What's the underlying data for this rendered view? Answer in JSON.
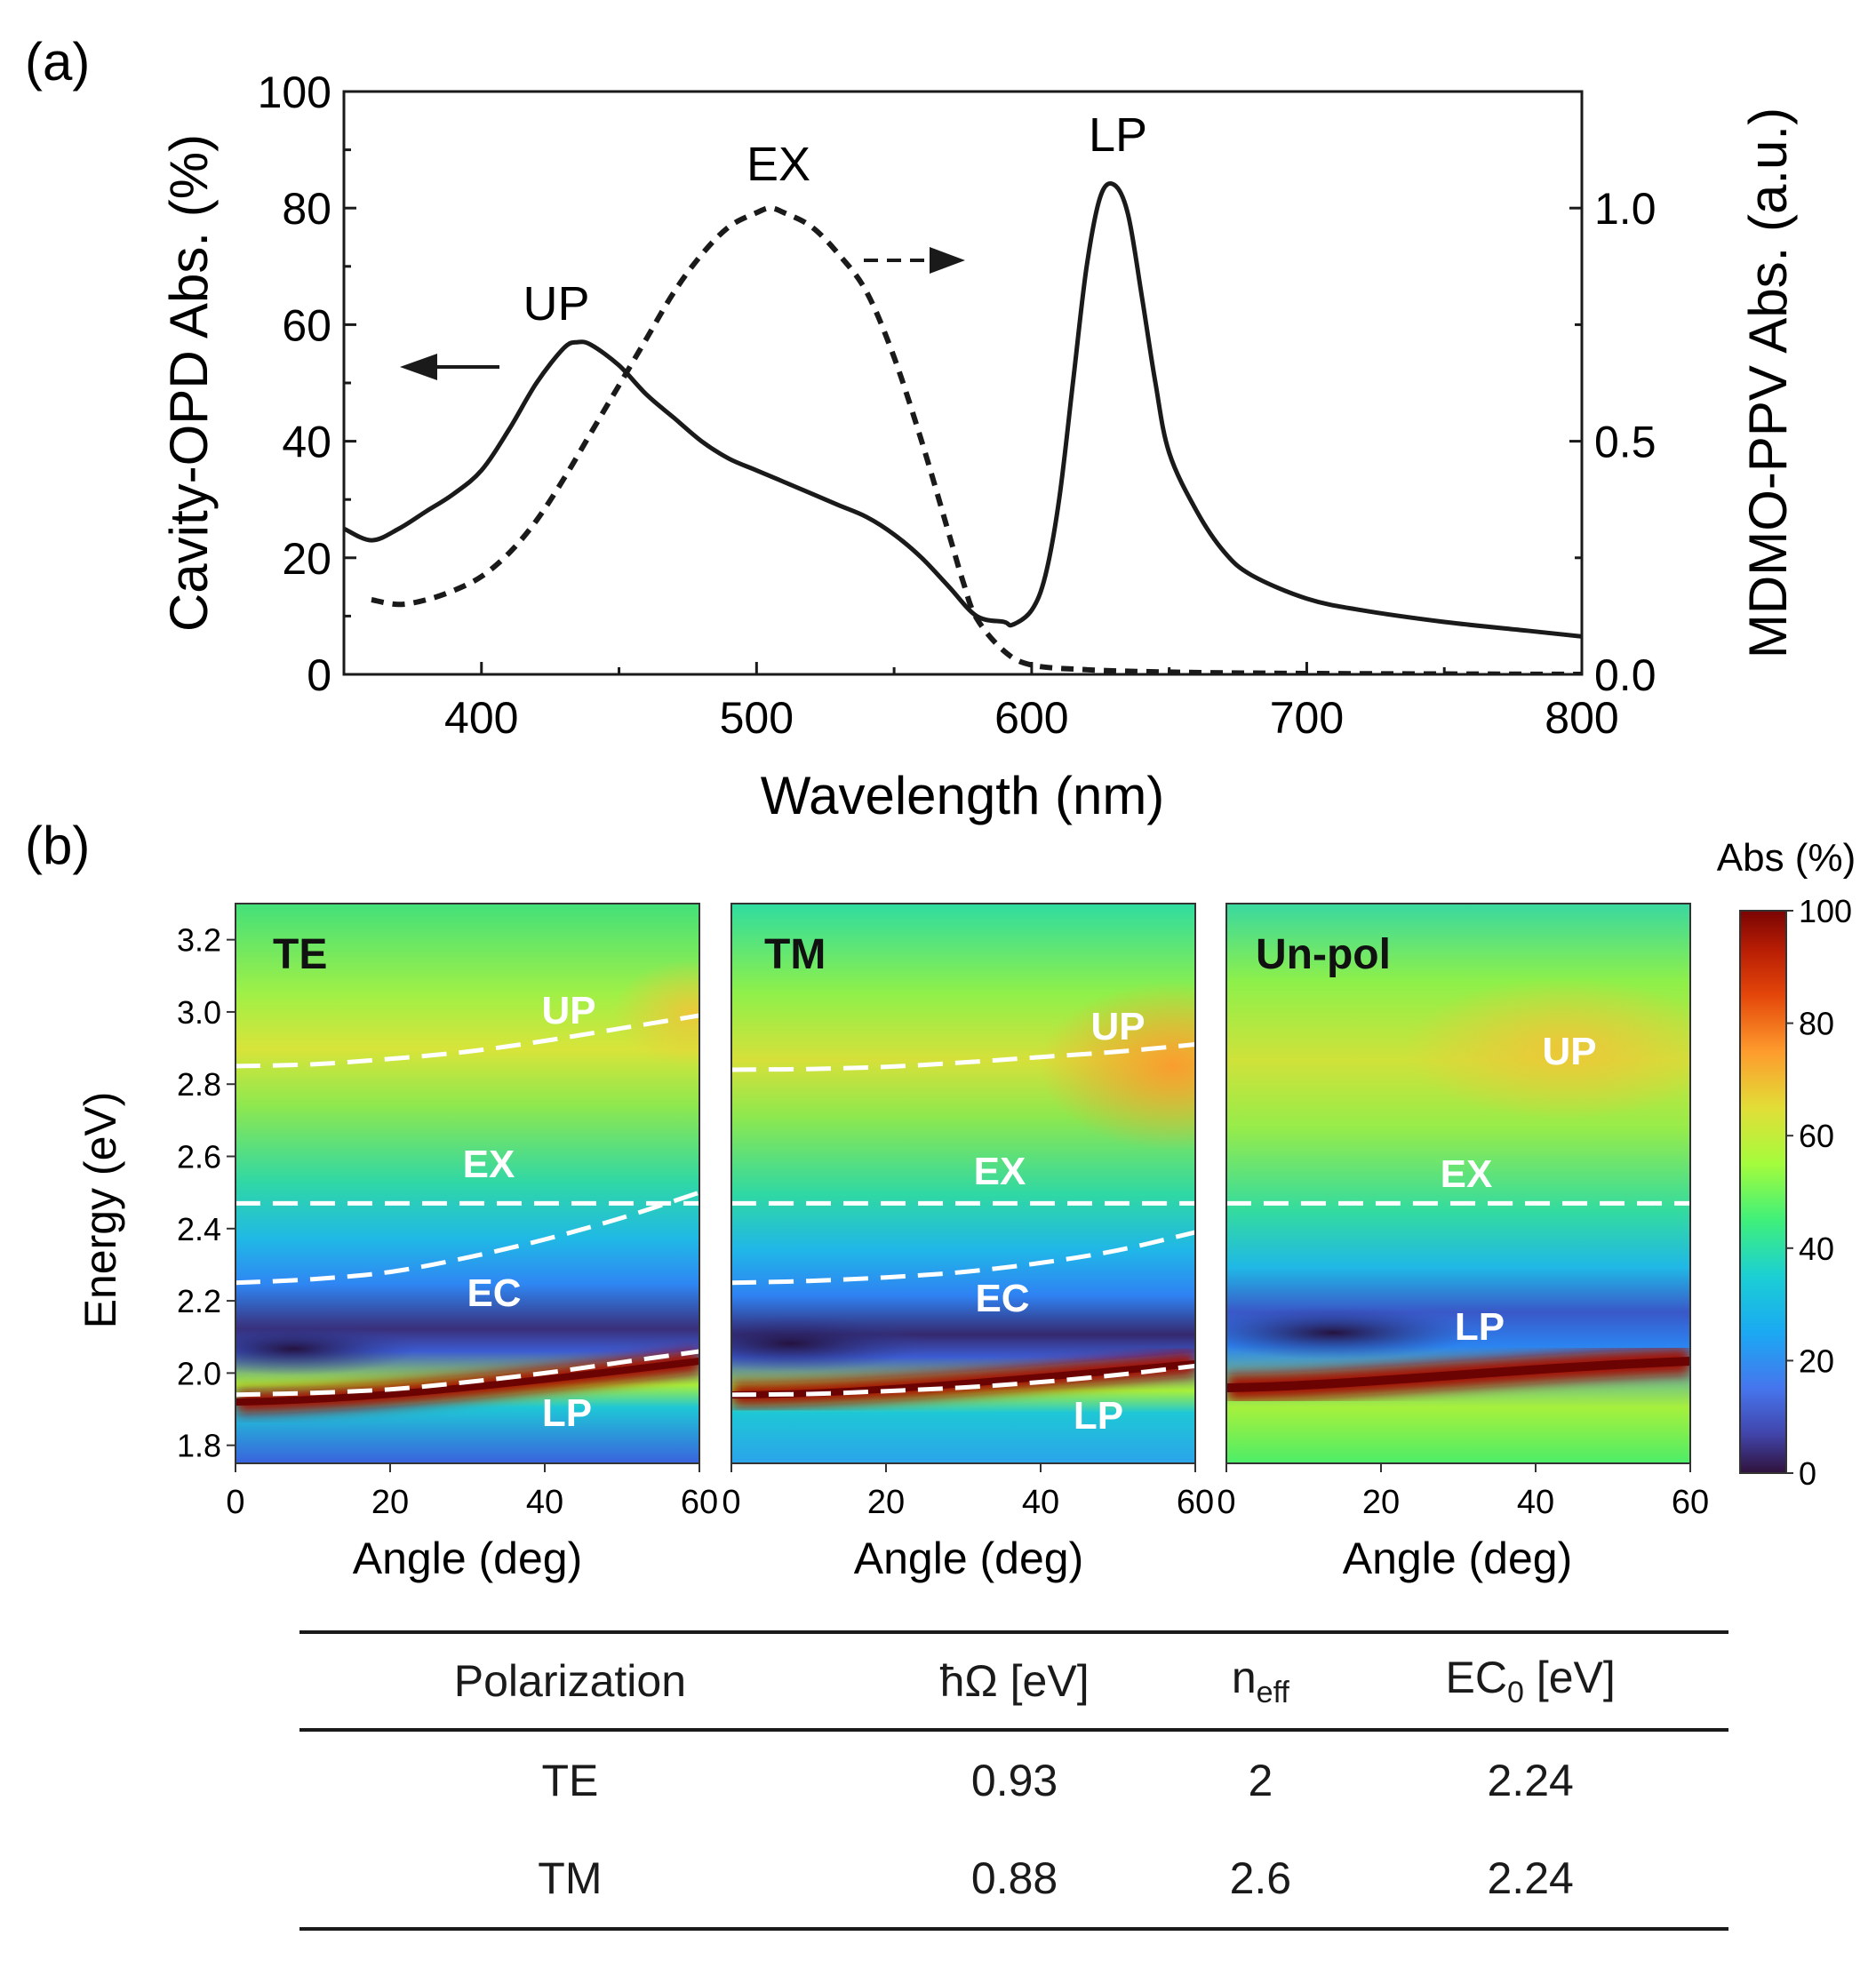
{
  "panel_a": {
    "label": "(a)",
    "chart_data": {
      "type": "line",
      "xlabel": "Wavelength (nm)",
      "ylabel": "Cavity-OPD Abs. (%)",
      "y2label": "MDMO-PPV Abs. (a.u.)",
      "xlim": [
        350,
        800
      ],
      "ylim": [
        0,
        100
      ],
      "y2lim": [
        0,
        1.25
      ],
      "xticks": [
        "400",
        "500",
        "600",
        "700",
        "800"
      ],
      "yticks": [
        "0",
        "20",
        "40",
        "60",
        "80",
        "100"
      ],
      "y2ticks": [
        "0.0",
        "0.5",
        "1.0"
      ],
      "series": [
        {
          "name": "Cavity-OPD",
          "axis": "left",
          "style": "solid",
          "x": [
            350,
            360,
            370,
            380,
            390,
            400,
            410,
            420,
            430,
            435,
            440,
            450,
            460,
            470,
            480,
            490,
            500,
            510,
            520,
            530,
            540,
            550,
            560,
            570,
            580,
            590,
            593,
            600,
            605,
            610,
            615,
            620,
            625,
            630,
            635,
            640,
            645,
            650,
            660,
            670,
            680,
            700,
            720,
            750,
            780,
            800
          ],
          "y": [
            25,
            23,
            25,
            28,
            31,
            35,
            42,
            50,
            56,
            57,
            56.5,
            53,
            48,
            44,
            40,
            37,
            35,
            33,
            31,
            29,
            27,
            24,
            20,
            15,
            10,
            9,
            8.5,
            11,
            17,
            30,
            50,
            70,
            82,
            84,
            79,
            65,
            50,
            38,
            28,
            21,
            17,
            13,
            11,
            9,
            7.5,
            6.5
          ]
        },
        {
          "name": "MDMO-PPV",
          "axis": "right",
          "style": "dashed",
          "x": [
            360,
            370,
            380,
            390,
            400,
            410,
            420,
            430,
            440,
            450,
            460,
            470,
            480,
            490,
            500,
            505,
            510,
            520,
            530,
            540,
            550,
            560,
            570,
            575,
            580,
            590,
            600,
            620,
            650,
            700,
            800
          ],
          "y": [
            0.16,
            0.15,
            0.16,
            0.18,
            0.21,
            0.26,
            0.33,
            0.42,
            0.52,
            0.62,
            0.72,
            0.82,
            0.9,
            0.96,
            0.99,
            1.0,
            0.99,
            0.96,
            0.9,
            0.82,
            0.68,
            0.5,
            0.3,
            0.2,
            0.12,
            0.05,
            0.02,
            0.01,
            0.005,
            0.002,
            0.0
          ]
        }
      ],
      "annotations": [
        "UP",
        "EX",
        "LP"
      ]
    }
  },
  "panel_b": {
    "label": "(b)",
    "chart_data": [
      {
        "type": "heatmap",
        "title": "TE",
        "xlabel": "Angle (deg)",
        "ylabel": "Energy (eV)",
        "xlim": [
          0,
          60
        ],
        "ylim": [
          1.75,
          3.3
        ],
        "xticks": [
          "0",
          "20",
          "40",
          "60"
        ],
        "yticks": [
          "1.8",
          "2.0",
          "2.2",
          "2.4",
          "2.6",
          "2.8",
          "3.0",
          "3.2"
        ],
        "dashed_curves": {
          "angle": [
            0,
            10,
            20,
            30,
            40,
            50,
            60
          ],
          "UP": [
            2.85,
            2.855,
            2.87,
            2.89,
            2.92,
            2.955,
            2.99
          ],
          "EX": [
            2.47,
            2.47,
            2.47,
            2.47,
            2.47,
            2.47,
            2.47
          ],
          "EC": [
            2.25,
            2.26,
            2.28,
            2.32,
            2.37,
            2.43,
            2.5
          ],
          "LP": [
            1.94,
            1.945,
            1.955,
            1.975,
            2.0,
            2.03,
            2.06
          ]
        },
        "labels": [
          "UP",
          "EX",
          "EC",
          "LP"
        ]
      },
      {
        "type": "heatmap",
        "title": "TM",
        "xlabel": "Angle (deg)",
        "ylabel": "Energy (eV)",
        "xlim": [
          0,
          60
        ],
        "ylim": [
          1.75,
          3.3
        ],
        "xticks": [
          "0",
          "20",
          "40",
          "60"
        ],
        "yticks": [
          "1.8",
          "2.0",
          "2.2",
          "2.4",
          "2.6",
          "2.8",
          "3.0",
          "3.2"
        ],
        "dashed_curves": {
          "angle": [
            0,
            10,
            20,
            30,
            40,
            50,
            60
          ],
          "UP": [
            2.84,
            2.842,
            2.848,
            2.86,
            2.875,
            2.89,
            2.91
          ],
          "EX": [
            2.47,
            2.47,
            2.47,
            2.47,
            2.47,
            2.47,
            2.47
          ],
          "EC": [
            2.25,
            2.255,
            2.265,
            2.28,
            2.305,
            2.34,
            2.39
          ],
          "LP": [
            1.94,
            1.942,
            1.95,
            1.96,
            1.975,
            1.995,
            2.02
          ]
        },
        "labels": [
          "UP",
          "EX",
          "EC",
          "LP"
        ]
      },
      {
        "type": "heatmap",
        "title": "Un-pol",
        "xlabel": "Angle (deg)",
        "ylabel": "Energy (eV)",
        "xlim": [
          0,
          60
        ],
        "ylim": [
          1.75,
          3.3
        ],
        "xticks": [
          "0",
          "20",
          "40",
          "60"
        ],
        "yticks": [
          "1.8",
          "2.0",
          "2.2",
          "2.4",
          "2.6",
          "2.8",
          "3.0",
          "3.2"
        ],
        "dashed_curves": {
          "angle": [
            0,
            60
          ],
          "EX": [
            2.47,
            2.47
          ]
        },
        "labels": [
          "UP",
          "EX",
          "LP"
        ]
      }
    ],
    "colorbar": {
      "title": "Abs (%)",
      "range": [
        0,
        100
      ],
      "ticks": [
        "0",
        "20",
        "40",
        "60",
        "80",
        "100"
      ]
    }
  },
  "table": {
    "headers": [
      "Polarization",
      "ħΩ [eV]",
      "n",
      "eff",
      "EC",
      "0",
      " [eV]"
    ],
    "rows": [
      [
        "TE",
        "0.93",
        "2",
        "2.24"
      ],
      [
        "TM",
        "0.88",
        "2.6",
        "2.24"
      ]
    ]
  },
  "colors": {
    "ink": "#1a1a1a",
    "curve_white": "#ffffff",
    "lp_band": "#a50f05",
    "ec_dark": "#2b1b55"
  }
}
